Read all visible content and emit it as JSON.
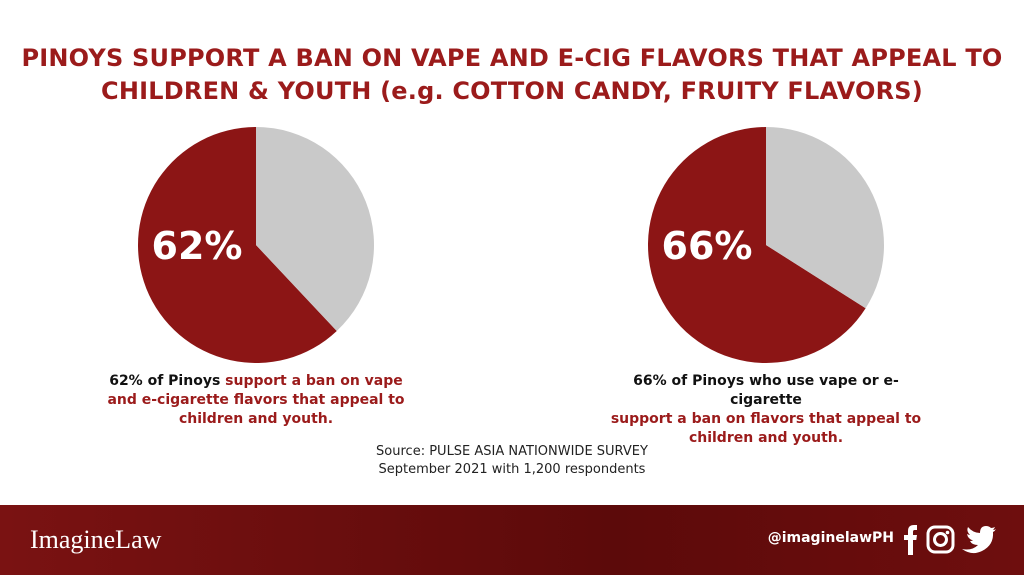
{
  "title": "PINOYS SUPPORT A BAN ON VAPE AND E-CIG FLAVORS THAT APPEAL TO CHILDREN & YOUTH (e.g. COTTON CANDY, FRUITY FLAVORS)",
  "chart_data": [
    {
      "type": "pie",
      "values": [
        62,
        38
      ],
      "value_labels": [
        "62%",
        null
      ],
      "colors": [
        "#8c1515",
        "#c9c9c9"
      ],
      "caption": [
        "62% of Pinoys",
        "support a ban on vape and e-cigarette flavors that appeal to children and youth."
      ]
    },
    {
      "type": "pie",
      "values": [
        66,
        34
      ],
      "value_labels": [
        "66%",
        null
      ],
      "colors": [
        "#8c1515",
        "#c9c9c9"
      ],
      "caption": [
        "66% of Pinoys who use vape or e-cigarette",
        "support a ban on flavors that appeal to children and youth."
      ]
    }
  ],
  "source": [
    "Source: PULSE ASIA NATIONWIDE SURVEY",
    "September 2021 with 1,200 respondents"
  ],
  "footer": {
    "brand": "ImagineLaw",
    "handle": "@imaginelawPH"
  }
}
